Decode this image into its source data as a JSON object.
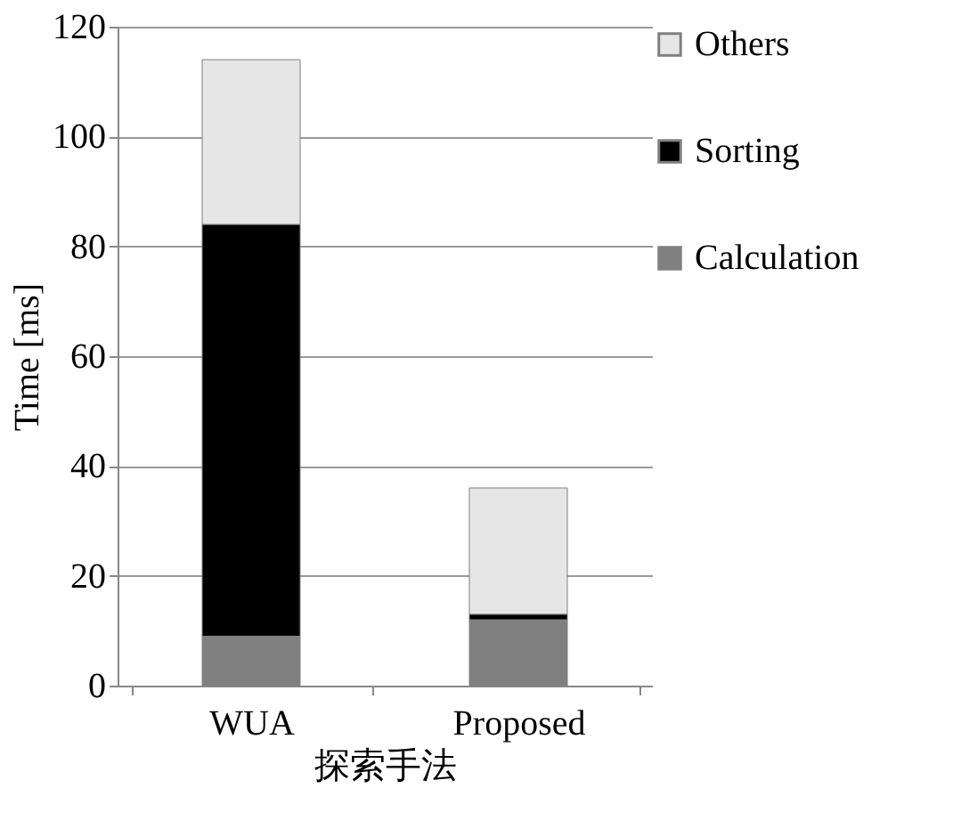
{
  "chart_data": {
    "type": "bar",
    "stacked": true,
    "categories": [
      "WUA",
      "Proposed"
    ],
    "series": [
      {
        "name": "Calculation",
        "color": "#808080",
        "values": [
          9,
          12
        ]
      },
      {
        "name": "Sorting",
        "color": "#000000",
        "values": [
          75,
          1
        ]
      },
      {
        "name": "Others",
        "color": "#e6e6e6",
        "values": [
          30,
          23
        ]
      }
    ],
    "xlabel": "探索手法",
    "ylabel": "Time [ms]",
    "ylim": [
      0,
      120
    ],
    "yticks": [
      0,
      20,
      40,
      60,
      80,
      100,
      120
    ],
    "grid": "y",
    "legend": "right"
  }
}
